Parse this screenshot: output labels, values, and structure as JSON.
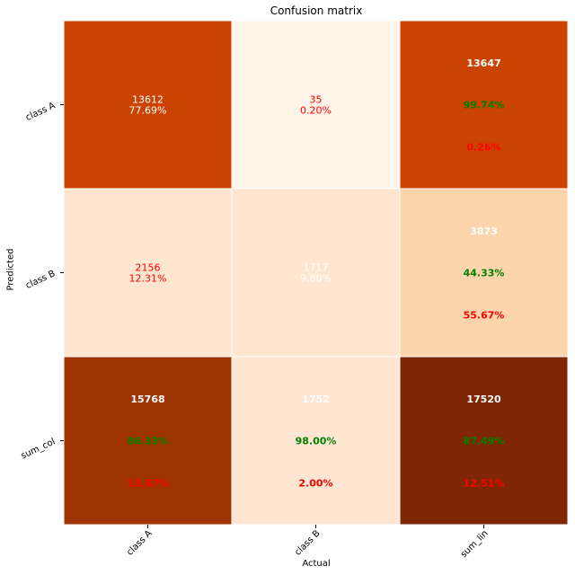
{
  "chart_data": {
    "type": "heatmap",
    "title": "Confusion matrix",
    "xlabel": "Actual",
    "ylabel": "Predicted",
    "x_categories": [
      "class A",
      "class B",
      "sum_lin"
    ],
    "y_categories": [
      "class A",
      "class B",
      "sum_col"
    ],
    "colormap": "Oranges",
    "grid_line_color": "#ffffff",
    "cells": [
      [
        {
          "lines": [
            "13612",
            "77.69%"
          ],
          "layout": "center",
          "fill": "#cb4301",
          "colors": [
            "#ffffff",
            "#ffffff"
          ],
          "bold": false
        },
        {
          "lines": [
            "35",
            "0.20%"
          ],
          "layout": "center",
          "fill": "#fff4e8",
          "colors": [
            "#ff0000",
            "#ff0000"
          ],
          "bold": false
        },
        {
          "lines": [
            "13647",
            "99.74%",
            "0.26%"
          ],
          "layout": "spread",
          "fill": "#cb4301",
          "colors": [
            "#ffffff",
            "#008000",
            "#ff0000"
          ],
          "bold": true
        }
      ],
      [
        {
          "lines": [
            "2156",
            "12.31%"
          ],
          "layout": "center",
          "fill": "#fee6d0",
          "colors": [
            "#ff0000",
            "#ff0000"
          ],
          "bold": false
        },
        {
          "lines": [
            "1717",
            "9.80%"
          ],
          "layout": "center",
          "fill": "#fee6d0",
          "colors": [
            "#ffffff",
            "#ffffff"
          ],
          "bold": false
        },
        {
          "lines": [
            "3873",
            "44.33%",
            "55.67%"
          ],
          "layout": "spread",
          "fill": "#fdd5ac",
          "colors": [
            "#ffffff",
            "#008000",
            "#ff0000"
          ],
          "bold": true
        }
      ],
      [
        {
          "lines": [
            "15768",
            "86.33%",
            "13.67%"
          ],
          "layout": "spread",
          "fill": "#9e3303",
          "colors": [
            "#ffffff",
            "#008000",
            "#ff0000"
          ],
          "bold": true
        },
        {
          "lines": [
            "1752",
            "98.00%",
            "2.00%"
          ],
          "layout": "spread",
          "fill": "#fee6d3",
          "colors": [
            "#ffffff",
            "#008000",
            "#ff0000"
          ],
          "bold": true
        },
        {
          "lines": [
            "17520",
            "87.49%",
            "12.51%"
          ],
          "layout": "spread",
          "fill": "#7f2704",
          "colors": [
            "#ffffff",
            "#008000",
            "#ff0000"
          ],
          "bold": true
        }
      ]
    ]
  }
}
